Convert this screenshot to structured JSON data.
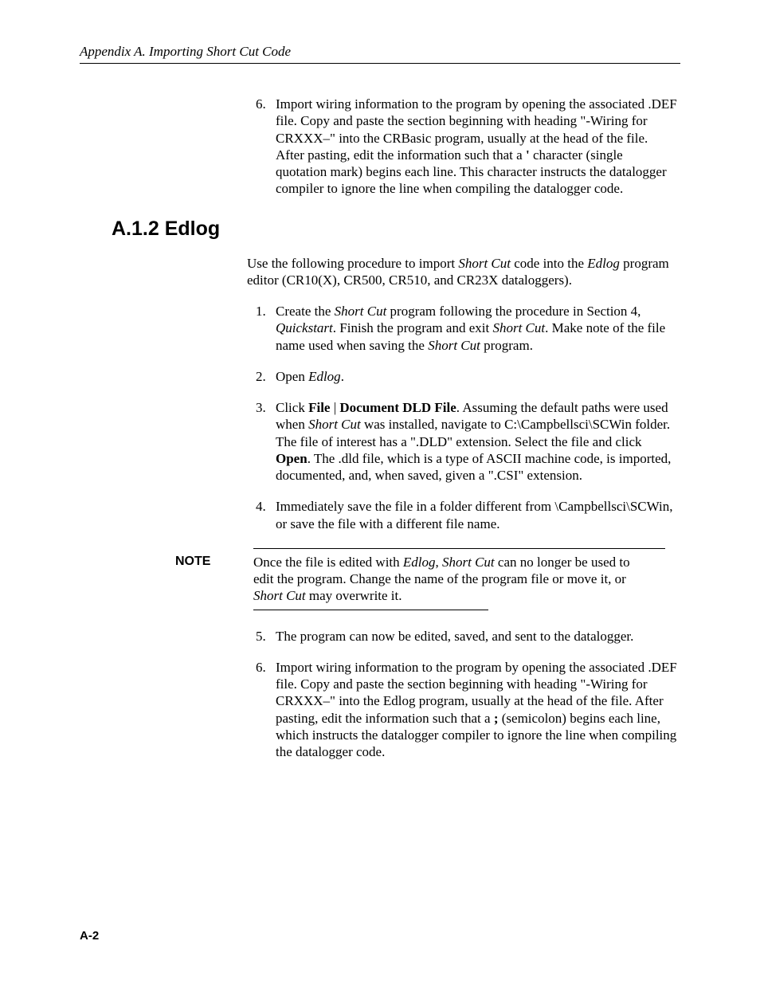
{
  "runningHeader": "Appendix A.  Importing Short Cut Code",
  "sectionHeading": "A.1.2  Edlog",
  "pageNumber": "A-2",
  "continuedListStart": 6,
  "continuedStep6_html": "Import wiring information to the program by opening the associated .DEF file.  Copy and paste the section beginning with heading \"-Wiring for CRXXX–\" into the CRBasic program, usually at the head of the file.  After pasting, edit the information such that a <span class=\"b\">'</span> character (single quotation mark) begins each line.  This character instructs the datalogger compiler to ignore the line when compiling the datalogger code.",
  "intro_html": "Use the following procedure to import <span class=\"i\">Short Cut</span> code into the <span class=\"i\">Edlog</span> program editor (CR10(X), CR500, CR510, and CR23X dataloggers).",
  "step1_html": "Create the <span class=\"i\">Short Cut</span> program following the procedure in Section 4, <span class=\"i\">Quickstart</span>.  Finish the program and exit <span class=\"i\">Short Cut</span>.  Make note of the file name used when saving the <span class=\"i\">Short Cut</span> program.",
  "step2_html": "Open <span class=\"i\">Edlog</span>.",
  "step3_html": "Click <span class=\"b\">File</span> | <span class=\"b\">Document DLD File</span>.  Assuming the default paths were used when <span class=\"i\">Short Cut</span> was installed, navigate to C:\\Campbellsci\\SCWin folder.  The file of interest has a \".DLD\" extension.  Select the file and click <span class=\"b\">Open</span>.  The .dld file, which is a type of ASCII machine code, is imported, documented, and, when saved, given a \".CSI\" extension.",
  "step4_html": "Immediately save the file in a folder different from \\Campbellsci\\SCWin, or save the file with a different file name.",
  "noteLabel": "NOTE",
  "note_html": "Once the file is edited with <span class=\"i\">Edlog</span>, <span class=\"i\">Short Cut</span> can no longer be used to edit the program.  Change the name of the program file or move it, or <span class=\"i\">Short Cut</span> may overwrite it.",
  "step5_html": "The program can now be edited, saved, and sent to the datalogger.",
  "step6_html": "Import wiring information to the program by opening the associated .DEF file.  Copy and paste the section beginning with heading \"-Wiring for CRXXX–\" into the Edlog program, usually at the head of the file.  After pasting, edit the information such that a <span class=\"b\">;</span> (semicolon) begins each line, which instructs the datalogger compiler to ignore the line when compiling the datalogger code.",
  "colors": {
    "text": "#000000",
    "background": "#ffffff",
    "rule": "#000000"
  },
  "typography": {
    "body_font": "Times New Roman",
    "heading_font": "Arial",
    "body_size_pt": 12,
    "heading_size_pt": 18,
    "note_label_size_pt": 11
  }
}
